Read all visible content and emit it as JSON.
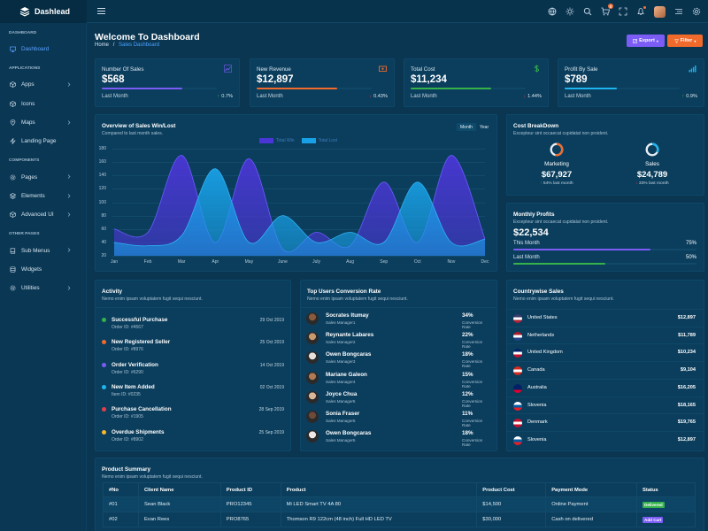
{
  "brand": {
    "name": "Dashlead"
  },
  "topbar": {
    "cart_count": "8"
  },
  "sidebar": {
    "sections": [
      {
        "title": "DASHBOARD",
        "items": [
          {
            "label": "Dashboard",
            "icon": "monitor-icon",
            "active": true
          }
        ]
      },
      {
        "title": "APPLICATIONS",
        "items": [
          {
            "label": "Apps",
            "icon": "cube-icon",
            "chevron": true
          },
          {
            "label": "Icons",
            "icon": "box-icon"
          },
          {
            "label": "Maps",
            "icon": "map-pin-icon",
            "chevron": true
          },
          {
            "label": "Landing Page",
            "icon": "zap-icon"
          }
        ]
      },
      {
        "title": "COMPONENTS",
        "items": [
          {
            "label": "Pages",
            "icon": "settings-icon",
            "chevron": true
          },
          {
            "label": "Elements",
            "icon": "layers-icon",
            "chevron": true
          },
          {
            "label": "Advanced UI",
            "icon": "box-icon",
            "chevron": true
          }
        ]
      },
      {
        "title": "OTHER PAGES",
        "items": [
          {
            "label": "Sub Menus",
            "icon": "book-icon",
            "chevron": true
          },
          {
            "label": "Widgets",
            "icon": "database-icon"
          },
          {
            "label": "Utilities",
            "icon": "gear-icon",
            "chevron": true
          }
        ]
      }
    ]
  },
  "header": {
    "title": "Welcome To Dashboard",
    "crumb_home": "Home",
    "crumb_sep": "/",
    "crumb_current": "Sales Dashboard",
    "export_label": "Export",
    "filter_label": "Filter"
  },
  "stats": [
    {
      "label": "Number Of Sales",
      "value": "$568",
      "sub": "Last Month",
      "pct": "0.7%",
      "dir": "up",
      "color": "#7b5cf5",
      "progress": 0.7,
      "icon": "line-chart-icon"
    },
    {
      "label": "New Revenue",
      "value": "$12,897",
      "sub": "Last Month",
      "pct": "0.43%",
      "dir": "down",
      "color": "#f06a2c",
      "progress": 0.7,
      "icon": "wallet-icon"
    },
    {
      "label": "Total Cost",
      "value": "$11,234",
      "sub": "Last Month",
      "pct": "1.44%",
      "dir": "down",
      "color": "#36b24b",
      "progress": 0.7,
      "icon": "dollar-icon"
    },
    {
      "label": "Profit By Sale",
      "value": "$789",
      "sub": "Last Month",
      "pct": "0.9%",
      "dir": "up",
      "color": "#1fb5f0",
      "progress": 0.45,
      "icon": "signal-bars-icon"
    }
  ],
  "overview": {
    "title": "Overview of Sales Win/Lost",
    "subtitle": "Compared to last month sales.",
    "toggle_month": "Month",
    "toggle_year": "Year"
  },
  "chart_data": {
    "type": "area",
    "categories": [
      "Jan",
      "Feb",
      "Mar",
      "Apr",
      "May",
      "June",
      "July",
      "Aug",
      "Sep",
      "Oct",
      "Nov",
      "Dec"
    ],
    "y_ticks": [
      20,
      40,
      60,
      80,
      100,
      120,
      140,
      160,
      180
    ],
    "ylim": [
      20,
      180
    ],
    "series": [
      {
        "name": "Total Win",
        "color": "#4a36d6",
        "values": [
          60,
          55,
          170,
          40,
          165,
          30,
          55,
          35,
          130,
          40,
          170,
          45
        ]
      },
      {
        "name": "Total Lost",
        "color": "#18a0e6",
        "values": [
          40,
          35,
          50,
          150,
          40,
          80,
          40,
          55,
          40,
          130,
          40,
          45
        ]
      }
    ]
  },
  "cost": {
    "title": "Cost BreakDown",
    "subtitle": "Excepteur sint occaecat cupidatat non proident.",
    "items": [
      {
        "label": "Marketing",
        "value": "$67,927",
        "sub": "54% last month",
        "dir": "up",
        "color": "#f06a2c",
        "fraction": 0.54
      },
      {
        "label": "Sales",
        "value": "$24,789",
        "sub": "33% last month",
        "dir": "down",
        "color": "#1fb5f0",
        "fraction": 0.33
      }
    ]
  },
  "profit": {
    "title": "Monthly Profits",
    "subtitle": "Excepteur sint occaecat cupidatat non proident.",
    "value": "$22,534",
    "rows": [
      {
        "label": "This Month",
        "pct": "75%",
        "color": "#7b5cf5",
        "fraction": 0.75
      },
      {
        "label": "Last Month",
        "pct": "50%",
        "color": "#36b24b",
        "fraction": 0.5
      }
    ]
  },
  "activity": {
    "title": "Activity",
    "subtitle": "Nemo enim ipsam voluptatem fugit sequi nesciunt.",
    "items": [
      {
        "title": "Successful Purchase",
        "sub": "Order ID: #4567",
        "date": "29 Oct 2019",
        "color": "#36b24b"
      },
      {
        "title": "New Registered Seller",
        "sub": "Order ID: #8976",
        "date": "25 Oct 2019",
        "color": "#f06a2c"
      },
      {
        "title": "Order Verification",
        "sub": "Order ID: #6290",
        "date": "14 Oct 2019",
        "color": "#7b5cf5"
      },
      {
        "title": "New Item Added",
        "sub": "Item ID: #0235",
        "date": "02 Oct 2019",
        "color": "#1fb5f0"
      },
      {
        "title": "Purchase Cancellation",
        "sub": "Order ID: #1905",
        "date": "28 Sep 2019",
        "color": "#e53e4a"
      },
      {
        "title": "Overdue Shipments",
        "sub": "Order ID: #8902",
        "date": "25 Sep 2019",
        "color": "#f5b72c"
      }
    ]
  },
  "top_users": {
    "title": "Top Users Conversion Rate",
    "subtitle": "Nemo enim ipsam voluptatem fugit sequi nesciunt.",
    "users": [
      {
        "name": "Socrates Itumay",
        "role": "Sales Manager1",
        "pct": "34%",
        "rate": "Conversion Rate",
        "av": "#8a5a3c"
      },
      {
        "name": "Reynante Labares",
        "role": "Sales Manager2",
        "pct": "22%",
        "rate": "Conversion Rate",
        "av": "#c99a6e"
      },
      {
        "name": "Owen Bongcaras",
        "role": "Sales Manager3",
        "pct": "18%",
        "rate": "Conversion Rate",
        "av": "#e8e0dc"
      },
      {
        "name": "Mariane Galeon",
        "role": "Sales Manager4",
        "pct": "15%",
        "rate": "Conversion Rate",
        "av": "#b07a55"
      },
      {
        "name": "Joyce Chua",
        "role": "Sales Manager5",
        "pct": "12%",
        "rate": "Conversion Rate",
        "av": "#d9b89a"
      },
      {
        "name": "Sonia Fraser",
        "role": "Sales Manager5",
        "pct": "11%",
        "rate": "Conversion Rate",
        "av": "#6e4a3a"
      },
      {
        "name": "Owen Bongcaras",
        "role": "Sales Manager5",
        "pct": "18%",
        "rate": "Conversion Rate",
        "av": "#efe8e4"
      }
    ]
  },
  "countries": {
    "title": "Countrywise Sales",
    "subtitle": "Nemo enim ipsam voluptatem fugit sequi nesciunt.",
    "rows": [
      {
        "name": "United States",
        "value": "$12,897",
        "flag": [
          "#3c3b6e",
          "#ffffff",
          "#b22234"
        ]
      },
      {
        "name": "Netherlands",
        "value": "$11,789",
        "flag": [
          "#ae1c28",
          "#ffffff",
          "#21468b"
        ]
      },
      {
        "name": "United Kingdom",
        "value": "$10,234",
        "flag": [
          "#012169",
          "#ffffff",
          "#c8102e"
        ]
      },
      {
        "name": "Canada",
        "value": "$9,104",
        "flag": [
          "#d52b1e",
          "#ffffff",
          "#d52b1e"
        ]
      },
      {
        "name": "Australia",
        "value": "$16,205",
        "flag": [
          "#012169",
          "#012169",
          "#e4002b"
        ]
      },
      {
        "name": "Slovenia",
        "value": "$18,165",
        "flag": [
          "#ffffff",
          "#005da4",
          "#ed1c24"
        ]
      },
      {
        "name": "Denmark",
        "value": "$19,765",
        "flag": [
          "#c8102e",
          "#ffffff",
          "#c8102e"
        ]
      },
      {
        "name": "Slovenia",
        "value": "$12,897",
        "flag": [
          "#ffffff",
          "#005da4",
          "#ed1c24"
        ]
      }
    ]
  },
  "products": {
    "title": "Product Summary",
    "subtitle": "Nemo enim ipsam voluptatem fugit sequi nesciunt.",
    "columns": [
      "#No",
      "Client Name",
      "Product ID",
      "Product",
      "Product Cost",
      "Payment Mode",
      "Status"
    ],
    "rows": [
      {
        "no": "#01",
        "client": "Sean Black",
        "pid": "PRO12345",
        "product": "Mi LED Smart TV 4A 80",
        "cost": "$14,500",
        "mode": "Online Payment",
        "status": "Delivered",
        "status_color": "#36b24b"
      },
      {
        "no": "#02",
        "client": "Evan Rees",
        "pid": "PRO8765",
        "product": "Thomson R9 122cm (48 inch) Full HD LED TV",
        "cost": "$30,000",
        "mode": "Cash on delivered",
        "status": "Add Cart",
        "status_color": "#7b5cf5"
      }
    ]
  }
}
